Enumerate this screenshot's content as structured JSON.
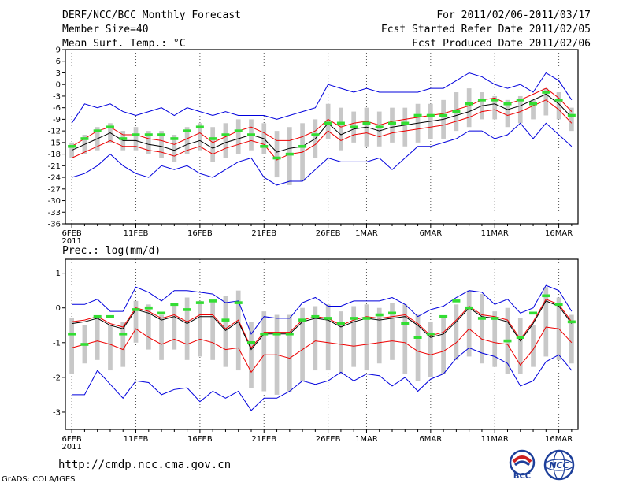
{
  "header": {
    "title": "DERF/NCC/BCC Monthly Forecast",
    "member_size": "Member Size=40",
    "variable": "Mean Surf. Temp.: °C",
    "period": "For 2011/02/06-2011/03/17",
    "refer_date": "Fcst Started Refer Date 2011/02/05",
    "produced_date": "Fcst Produced Date 2011/02/06"
  },
  "footer": {
    "url": "http://cmdp.ncc.cma.gov.cn",
    "grads": "GrADS: COLA/IGES",
    "logo_bcc_text": "BCC",
    "logo_ncc_text": "NCC"
  },
  "colors": {
    "median": "#000000",
    "envelope": "#0000dd",
    "spread": "#ee0000",
    "members": "#c8c8c8",
    "observed": "#33dd33",
    "grid": "#555555"
  },
  "chart_data": [
    {
      "type": "line",
      "title": "Mean Surf. Temp.: °C",
      "x_tick_labels": [
        "6FEB",
        "11FEB",
        "16FEB",
        "21FEB",
        "26FEB",
        "1MAR",
        "6MAR",
        "11MAR",
        "16MAR"
      ],
      "x_tick_days": [
        0,
        5,
        10,
        15,
        20,
        23,
        28,
        33,
        38
      ],
      "x_sub_label": "2011",
      "x_range": [
        -0.5,
        39.5
      ],
      "ylim": [
        -36,
        9
      ],
      "y_ticks": [
        -36,
        -33,
        -30,
        -27,
        -24,
        -21,
        -18,
        -15,
        -12,
        -9,
        -6,
        -3,
        0,
        3,
        6,
        9
      ],
      "series": [
        {
          "name": "ensemble mean",
          "color": "#000000",
          "values": [
            -17,
            -15.5,
            -14,
            -12.5,
            -14.5,
            -14.5,
            -15.5,
            -16,
            -17,
            -15.5,
            -14.5,
            -16.5,
            -15,
            -14,
            -13,
            -14,
            -17.5,
            -16.5,
            -16,
            -14,
            -10,
            -13,
            -11.5,
            -11,
            -12,
            -11,
            -10.5,
            -10,
            -9.5,
            -9,
            -8,
            -7,
            -5.5,
            -5,
            -6.5,
            -5.5,
            -4,
            -2.5,
            -5,
            -8.5
          ]
        },
        {
          "name": "upper spread",
          "color": "#ee0000",
          "values": [
            -16,
            -14,
            -12,
            -11,
            -13,
            -13,
            -14,
            -14.5,
            -15.5,
            -14,
            -12.5,
            -15,
            -13.5,
            -12,
            -11,
            -12.5,
            -14.5,
            -14.5,
            -13.5,
            -12,
            -9,
            -11,
            -10,
            -9.5,
            -10.5,
            -9.5,
            -9,
            -8.5,
            -8,
            -7.5,
            -6.5,
            -5.5,
            -4,
            -3.5,
            -5,
            -4,
            -2.5,
            -1,
            -3.5,
            -7
          ]
        },
        {
          "name": "lower spread",
          "color": "#ee0000",
          "values": [
            -19,
            -17.5,
            -16,
            -14.5,
            -16,
            -16,
            -17,
            -17.5,
            -18.5,
            -17,
            -16,
            -18,
            -16.5,
            -15.5,
            -14.5,
            -15.5,
            -19.5,
            -18,
            -17.5,
            -15.5,
            -12,
            -14.5,
            -13,
            -12.5,
            -13.5,
            -12.5,
            -12,
            -11.5,
            -11,
            -10.5,
            -9.5,
            -8.5,
            -7,
            -6.5,
            -8,
            -7,
            -5.5,
            -4,
            -6.5,
            -10
          ]
        },
        {
          "name": "ensemble max",
          "color": "#0000dd",
          "values": [
            -10,
            -5,
            -6,
            -5,
            -7,
            -8,
            -7,
            -6,
            -8,
            -6,
            -7,
            -8,
            -7,
            -8,
            -8,
            -8,
            -9,
            -8,
            -7,
            -6,
            0,
            -1,
            -2,
            -1,
            -2,
            -2,
            -2,
            -2,
            -1,
            -1,
            1,
            3,
            2,
            0,
            -1,
            0,
            -2,
            3,
            1,
            -4
          ]
        },
        {
          "name": "ensemble min",
          "color": "#0000dd",
          "values": [
            -24,
            -23,
            -21,
            -18,
            -21,
            -23,
            -24,
            -21,
            -22,
            -21,
            -23,
            -24,
            -22,
            -20,
            -19,
            -24,
            -26,
            -25,
            -25,
            -22,
            -19,
            -20,
            -20,
            -20,
            -19,
            -22,
            -19,
            -16,
            -16,
            -15,
            -14,
            -12,
            -12,
            -14,
            -13,
            -10,
            -14,
            -10,
            -13,
            -16
          ]
        },
        {
          "name": "members box top",
          "color": "#c8c8c8",
          "values": [
            -15,
            -13,
            -11,
            -10,
            -12,
            -11,
            -12,
            -12,
            -13,
            -11,
            -10,
            -11,
            -10,
            -9,
            -9,
            -10,
            -12,
            -11,
            -10,
            -9,
            -5,
            -6,
            -7,
            -6,
            -7,
            -6,
            -6,
            -5,
            -5,
            -4,
            -2,
            -1,
            -2,
            -3,
            -4,
            -3,
            -4,
            -1,
            -2,
            -6
          ]
        },
        {
          "name": "members box bottom",
          "color": "#c8c8c8",
          "values": [
            -19,
            -18,
            -17,
            -15,
            -17,
            -17,
            -18,
            -19,
            -20,
            -18,
            -17,
            -20,
            -19,
            -18,
            -17,
            -18,
            -24,
            -26,
            -25,
            -19,
            -14,
            -17,
            -15,
            -16,
            -16,
            -15,
            -16,
            -15,
            -14,
            -14,
            -12,
            -11,
            -9,
            -9,
            -11,
            -10,
            -9,
            -8,
            -9,
            -12
          ]
        },
        {
          "name": "observed",
          "color": "#33dd33",
          "values": [
            -16,
            -14,
            -12,
            -11,
            -14,
            -13,
            -13,
            -13,
            -14,
            -12,
            -11,
            -14,
            -13,
            -12,
            -13,
            -16,
            -19,
            -18,
            -16,
            -13,
            -10,
            -10,
            -11,
            -10,
            -11,
            -10,
            -10,
            -8,
            -8,
            -8,
            -7,
            -5,
            -4,
            -4,
            -5,
            -4,
            -5,
            -2,
            -4,
            -8
          ]
        }
      ]
    },
    {
      "type": "line",
      "title": "Prec.: log(mm/d)",
      "x_tick_labels": [
        "6FEB",
        "11FEB",
        "16FEB",
        "21FEB",
        "26FEB",
        "1MAR",
        "6MAR",
        "11MAR",
        "16MAR"
      ],
      "x_tick_days": [
        0,
        5,
        10,
        15,
        20,
        23,
        28,
        33,
        38
      ],
      "x_sub_label": "2011",
      "x_range": [
        -0.5,
        39.5
      ],
      "ylim": [
        -3.5,
        1.4
      ],
      "y_ticks": [
        -3,
        -2,
        -1,
        0,
        1
      ],
      "series": [
        {
          "name": "ensemble mean",
          "color": "#000000",
          "values": [
            -0.45,
            -0.4,
            -0.3,
            -0.5,
            -0.6,
            -0.05,
            -0.15,
            -0.35,
            -0.25,
            -0.45,
            -0.25,
            -0.25,
            -0.65,
            -0.4,
            -1.2,
            -0.75,
            -0.75,
            -0.75,
            -0.4,
            -0.3,
            -0.35,
            -0.55,
            -0.4,
            -0.3,
            -0.35,
            -0.3,
            -0.25,
            -0.5,
            -0.85,
            -0.75,
            -0.4,
            0,
            -0.25,
            -0.3,
            -0.4,
            -0.95,
            -0.45,
            0.2,
            0.05,
            -0.45
          ]
        },
        {
          "name": "upper spread",
          "color": "#ee0000",
          "values": [
            -0.4,
            -0.35,
            -0.25,
            -0.45,
            -0.55,
            0,
            -0.1,
            -0.3,
            -0.2,
            -0.4,
            -0.2,
            -0.2,
            -0.6,
            -0.35,
            -1.15,
            -0.7,
            -0.7,
            -0.7,
            -0.35,
            -0.25,
            -0.3,
            -0.5,
            -0.35,
            -0.25,
            -0.3,
            -0.25,
            -0.2,
            -0.45,
            -0.8,
            -0.7,
            -0.35,
            0.05,
            -0.2,
            -0.25,
            -0.35,
            -0.9,
            -0.4,
            0.25,
            0.1,
            -0.4
          ]
        },
        {
          "name": "lower spread",
          "color": "#ee0000",
          "values": [
            -1.15,
            -1.05,
            -0.95,
            -1.05,
            -1.2,
            -0.6,
            -0.85,
            -1.05,
            -0.9,
            -1.05,
            -0.9,
            -1.0,
            -1.2,
            -1.15,
            -1.85,
            -1.35,
            -1.35,
            -1.45,
            -1.2,
            -0.95,
            -1.0,
            -1.05,
            -1.1,
            -1.05,
            -1.0,
            -0.95,
            -1.0,
            -1.25,
            -1.35,
            -1.25,
            -1.0,
            -0.6,
            -0.9,
            -1.0,
            -1.05,
            -1.65,
            -1.2,
            -0.55,
            -0.6,
            -1.0
          ]
        },
        {
          "name": "ensemble max",
          "color": "#0000dd",
          "values": [
            0.1,
            0.1,
            0.25,
            -0.1,
            -0.1,
            0.6,
            0.45,
            0.2,
            0.5,
            0.5,
            0.45,
            0.4,
            0.15,
            0.2,
            -0.75,
            -0.25,
            -0.3,
            -0.3,
            0.15,
            0.3,
            0.05,
            0.05,
            0.2,
            0.2,
            0.2,
            0.3,
            0.1,
            -0.25,
            -0.05,
            0.05,
            0.3,
            0.5,
            0.45,
            0.1,
            0.25,
            -0.15,
            0.0,
            0.65,
            0.5,
            -0.1
          ]
        },
        {
          "name": "ensemble min",
          "color": "#0000dd",
          "values": [
            -2.5,
            -2.5,
            -1.8,
            -2.2,
            -2.6,
            -2.1,
            -2.15,
            -2.5,
            -2.35,
            -2.3,
            -2.7,
            -2.4,
            -2.6,
            -2.4,
            -2.95,
            -2.6,
            -2.6,
            -2.4,
            -2.1,
            -2.2,
            -2.1,
            -1.85,
            -2.1,
            -1.9,
            -1.95,
            -2.25,
            -2.0,
            -2.4,
            -2.05,
            -1.9,
            -1.45,
            -1.15,
            -1.3,
            -1.4,
            -1.6,
            -2.25,
            -2.1,
            -1.55,
            -1.35,
            -1.8
          ]
        },
        {
          "name": "members box top",
          "color": "#c8c8c8",
          "values": [
            -0.3,
            -0.5,
            -0.3,
            -0.5,
            -0.4,
            0.2,
            0.1,
            -0.2,
            0.15,
            0.3,
            0.2,
            0.2,
            0.35,
            0.5,
            -0.4,
            -0.1,
            -0.2,
            -0.2,
            0.0,
            0.05,
            0.1,
            -0.1,
            0.05,
            0.1,
            0.0,
            0.15,
            0.1,
            -0.2,
            -0.4,
            -0.3,
            0.1,
            0.5,
            0.4,
            -0.1,
            0.0,
            -0.3,
            -0.5,
            0.6,
            0.3,
            -0.2
          ]
        },
        {
          "name": "members box bottom",
          "color": "#c8c8c8",
          "values": [
            -1.9,
            -1.6,
            -1.5,
            -1.8,
            -1.7,
            -1.0,
            -1.2,
            -1.5,
            -1.2,
            -1.5,
            -1.4,
            -1.5,
            -1.7,
            -1.8,
            -2.3,
            -2.4,
            -2.5,
            -2.4,
            -2.1,
            -1.8,
            -1.8,
            -1.9,
            -1.7,
            -1.8,
            -1.6,
            -1.5,
            -1.9,
            -2.1,
            -2.0,
            -1.9,
            -1.5,
            -1.4,
            -1.6,
            -1.7,
            -1.9,
            -1.9,
            -1.7,
            -1.4,
            -1.5,
            -1.6
          ]
        },
        {
          "name": "observed",
          "color": "#33dd33",
          "values": [
            -0.75,
            -1.05,
            -0.25,
            -0.25,
            -0.75,
            -0.05,
            0.0,
            -0.15,
            0.1,
            -0.05,
            0.15,
            0.2,
            -0.35,
            0.15,
            -1.0,
            -0.75,
            -0.75,
            -0.75,
            -0.35,
            -0.25,
            -0.3,
            -0.45,
            -0.3,
            -0.3,
            -0.2,
            -0.15,
            -0.45,
            -0.85,
            -0.75,
            -0.25,
            0.2,
            0.0,
            -0.3,
            -0.3,
            -0.95,
            -0.85,
            -0.15,
            0.35,
            0.1,
            -0.4
          ]
        }
      ]
    }
  ]
}
